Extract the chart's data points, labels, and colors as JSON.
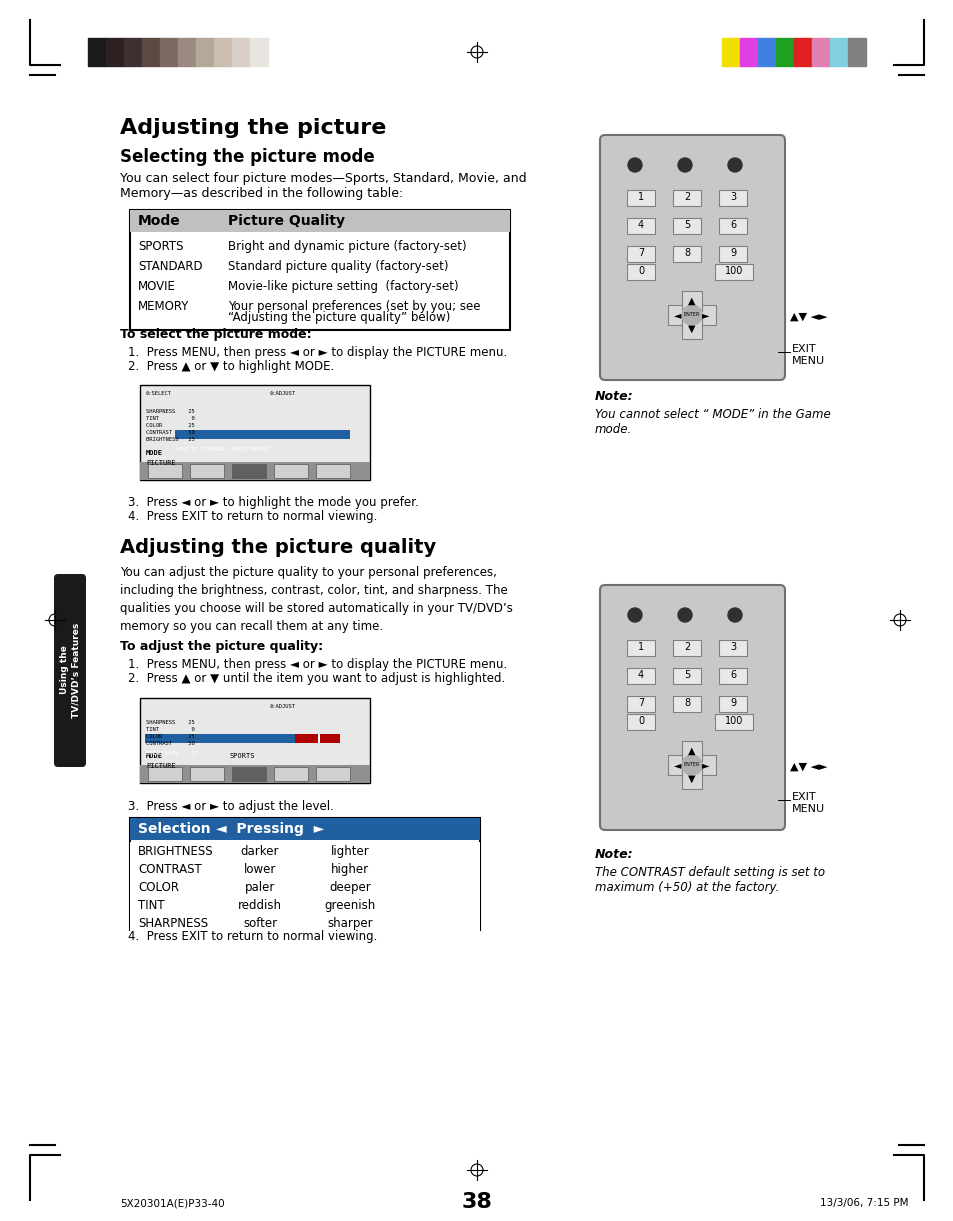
{
  "bg_color": "#ffffff",
  "page_number": "38",
  "top_bar_colors_left": [
    "#1a1a1a",
    "#2d2020",
    "#3d3030",
    "#5a4a40",
    "#7a6a60",
    "#9a8a80",
    "#b5a898",
    "#cbbdb0",
    "#d8d0c8",
    "#e8e4de"
  ],
  "top_bar_colors_right": [
    "#f0e000",
    "#e040e0",
    "#4080e0",
    "#20a020",
    "#e02020",
    "#e080b0",
    "#80d0e0",
    "#808080"
  ],
  "main_title": "Adjusting the picture",
  "section1_title": "Selecting the picture mode",
  "section1_intro": "You can select four picture modes—Sports, Standard, Movie, and\nMemory—as described in the following table:",
  "table1_headers": [
    "Mode",
    "Picture Quality"
  ],
  "table1_rows": [
    [
      "SPORTS",
      "Bright and dynamic picture (factory-set)"
    ],
    [
      "STANDARD",
      "Standard picture quality (factory-set)"
    ],
    [
      "MOVIE",
      "Movie-like picture setting  (factory-set)"
    ],
    [
      "MEMORY",
      "Your personal preferences (set by you; see\n“Adjusting the picture quality” below)"
    ]
  ],
  "select_mode_title": "To select the picture mode:",
  "select_mode_steps": [
    "Press MENU, then press ◄ or ► to display the PICTURE menu.",
    "Press ▲ or ▼ to highlight MODE."
  ],
  "select_mode_steps2": [
    "Press ◄ or ► to highlight the mode you prefer.",
    "Press EXIT to return to normal viewing."
  ],
  "note1_title": "Note:",
  "note1_text": "You cannot select “ MODE” in the Game\nmode.",
  "section2_title": "Adjusting the picture quality",
  "section2_intro": "You can adjust the picture quality to your personal preferences,\nincluding the brightness, contrast, color, tint, and sharpness. The\nqualities you choose will be stored automatically in your TV/DVD’s\nmemory so you can recall them at any time.",
  "adjust_quality_title": "To adjust the picture quality:",
  "adjust_quality_steps": [
    "Press MENU, then press ◄ or ► to display the PICTURE menu.",
    "Press ▲ or ▼ until the item you want to adjust is highlighted."
  ],
  "adjust_step3": "Press ◄ or ► to adjust the level.",
  "table2_headers": [
    "Selection",
    "◄  Pressing  ►"
  ],
  "table2_rows": [
    [
      "BRIGHTNESS",
      "darker",
      "lighter"
    ],
    [
      "CONTRAST",
      "lower",
      "higher"
    ],
    [
      "COLOR",
      "paler",
      "deeper"
    ],
    [
      "TINT",
      "reddish",
      "greenish"
    ],
    [
      "SHARPNESS",
      "softer",
      "sharper"
    ]
  ],
  "step4": "Press EXIT to return to normal viewing.",
  "note2_title": "Note:",
  "note2_text": "The CONTRAST default setting is set to\nmaximum (+50) at the factory.",
  "sidebar_text": "Using the\nTV/DVD’s Features",
  "footer_left": "5X20301A(E)P33-40",
  "footer_center": "38",
  "footer_right": "13/3/06, 7:15 PM"
}
